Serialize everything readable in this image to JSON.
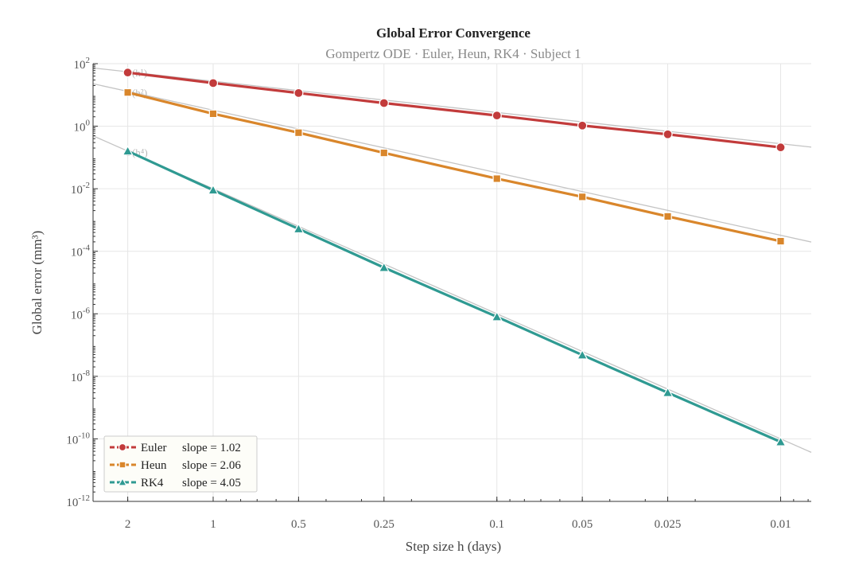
{
  "chart_data": {
    "type": "line",
    "title": "Global Error Convergence",
    "subtitle": "Gompertz ODE  ·  Euler, Heun, RK4  ·  Subject 1",
    "xlabel": "Step size  h  (days)",
    "ylabel": "Global error  (mm³)",
    "x_scale": "log",
    "x_reversed": true,
    "y_scale": "log",
    "xlim": [
      2.65,
      0.0078
    ],
    "ylim": [
      1e-12,
      100
    ],
    "x": [
      2,
      1,
      0.5,
      0.25,
      0.1,
      0.05,
      0.025,
      0.01
    ],
    "x_tick_labels": [
      "2",
      "1",
      "0.5",
      "0.25",
      "0.1",
      "0.05",
      "0.025",
      "0.01"
    ],
    "y_ticks": [
      {
        "value": 1e-12,
        "base": "10",
        "exp": "-12"
      },
      {
        "value": 1e-10,
        "base": "10",
        "exp": "-10"
      },
      {
        "value": 1e-08,
        "base": "10",
        "exp": "-8"
      },
      {
        "value": 1e-06,
        "base": "10",
        "exp": "-6"
      },
      {
        "value": 0.0001,
        "base": "10",
        "exp": "-4"
      },
      {
        "value": 0.01,
        "base": "10",
        "exp": "-2"
      },
      {
        "value": 1,
        "base": "10",
        "exp": "0"
      },
      {
        "value": 100,
        "base": "10",
        "exp": "2"
      }
    ],
    "grid": true,
    "legend_position": "bottom-left",
    "series": [
      {
        "name": "Euler",
        "slope_label": "slope = 1.02",
        "color": "#c23b3b",
        "marker": "circle",
        "values": [
          52,
          24,
          11.5,
          5.5,
          2.2,
          1.05,
          0.55,
          0.21
        ]
      },
      {
        "name": "Heun",
        "slope_label": "slope = 2.06",
        "color": "#d9862b",
        "marker": "square",
        "values": [
          12,
          2.5,
          0.62,
          0.14,
          0.021,
          0.0055,
          0.0013,
          0.00021
        ]
      },
      {
        "name": "RK4",
        "slope_label": "slope = 4.05",
        "color": "#2f9a92",
        "marker": "triangle",
        "values": [
          0.16,
          0.009,
          0.00052,
          3e-05,
          8e-07,
          4.8e-08,
          3e-09,
          8e-11
        ]
      }
    ],
    "reference_lines": [
      {
        "label": "O(h¹)",
        "order": 1,
        "anchor_x": 2,
        "anchor_y": 55
      },
      {
        "label": "O(h²)",
        "order": 2,
        "anchor_x": 2,
        "anchor_y": 13
      },
      {
        "label": "O(h⁴)",
        "order": 4,
        "anchor_x": 2,
        "anchor_y": 0.16
      }
    ],
    "colors": {
      "reference": "#c4c4c4",
      "grid": "#e6e6e6",
      "axis": "#333333"
    }
  }
}
